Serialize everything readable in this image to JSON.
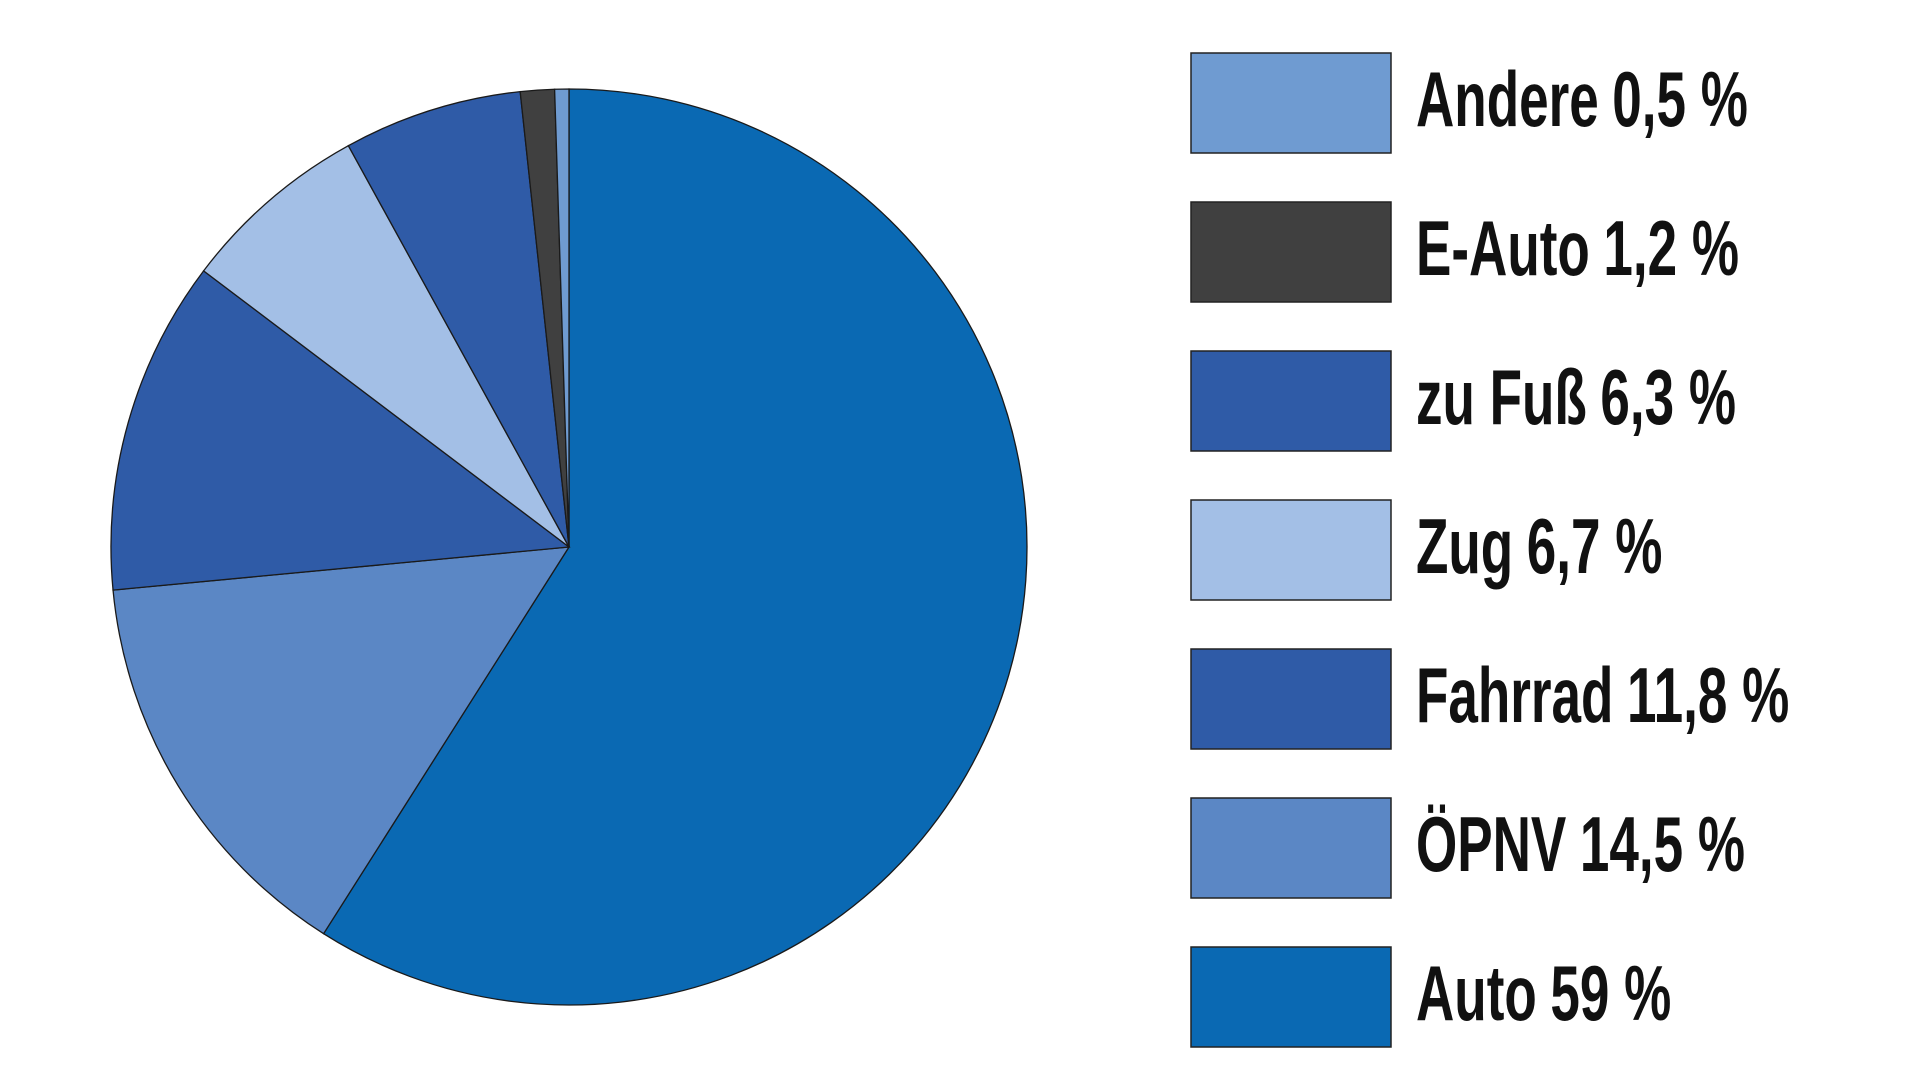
{
  "chart_data": {
    "type": "pie",
    "categories": [
      "Andere",
      "E-Auto",
      "zu Fuß",
      "Zug",
      "Fahrrad",
      "ÖPNV",
      "Auto"
    ],
    "values": [
      0.5,
      1.2,
      6.3,
      6.7,
      11.8,
      14.5,
      59
    ],
    "value_labels": [
      "0,5 %",
      "1,2 %",
      "6,3 %",
      "6,7 %",
      "11,8 %",
      "14,5 %",
      "59 %"
    ],
    "colors": [
      "#6f9bd1",
      "#404040",
      "#2f5ba7",
      "#a3bfe6",
      "#2f5ba7",
      "#5b87c5",
      "#0a69b3"
    ],
    "legend": "right"
  }
}
